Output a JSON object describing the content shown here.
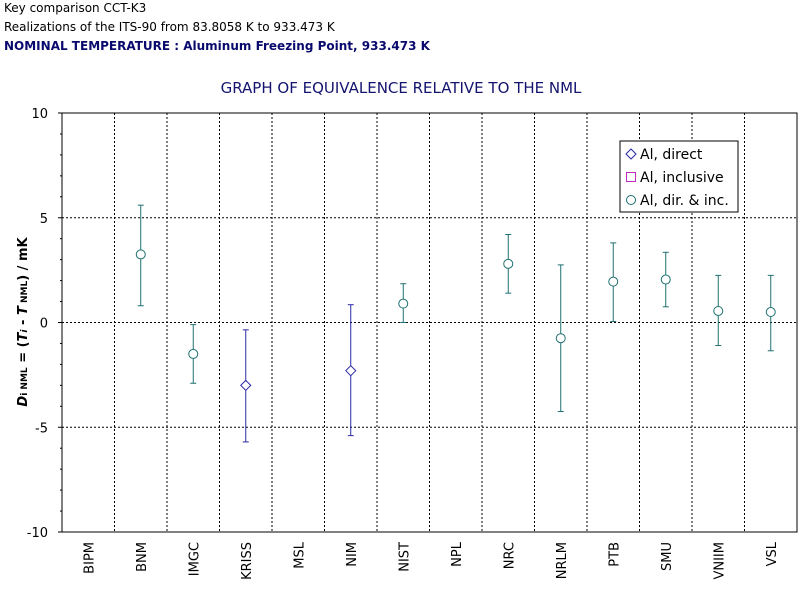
{
  "header": {
    "line1": "Key comparison CCT-K3",
    "line2": "Realizations of the ITS-90 from 83.8058 K to 933.473 K",
    "line3": "NOMINAL TEMPERATURE : Aluminum Freezing Point, 933.473 K"
  },
  "chart_data": {
    "type": "scatter",
    "title": "GRAPH OF EQUIVALENCE RELATIVE TO THE NML",
    "ylabel_parts": [
      "D",
      "i NML",
      " = (",
      "T",
      "i",
      " - ",
      "T",
      " NML",
      ") / mK"
    ],
    "ylim": [
      -10,
      10
    ],
    "yticks": [
      -10,
      -5,
      0,
      5,
      10
    ],
    "categories": [
      "BIPM",
      "BNM",
      "IMGC",
      "KRISS",
      "MSL",
      "NIM",
      "NIST",
      "NPL",
      "NRC",
      "NRLM",
      "PTB",
      "SMU",
      "VNIIM",
      "VSL"
    ],
    "grid": "dashed",
    "legend_position": "top-right",
    "colors": {
      "direct": "#2a2aa8",
      "inclusive": "#c02ac0",
      "combined": "#1f7070"
    },
    "series": [
      {
        "name": "Al, direct",
        "marker": "diamond",
        "color": "#2a2aa8",
        "points": [
          {
            "category": "KRISS",
            "y": -3.0,
            "low": -5.7,
            "high": -0.35
          },
          {
            "category": "NIM",
            "y": -2.3,
            "low": -5.4,
            "high": 0.85
          }
        ]
      },
      {
        "name": "Al, inclusive",
        "marker": "square",
        "color": "#c02ac0",
        "points": []
      },
      {
        "name": "Al, dir. & inc.",
        "marker": "circle",
        "color": "#1f7070",
        "points": [
          {
            "category": "BNM",
            "y": 3.25,
            "low": 0.8,
            "high": 5.6
          },
          {
            "category": "IMGC",
            "y": -1.5,
            "low": -2.9,
            "high": -0.1
          },
          {
            "category": "NIST",
            "y": 0.9,
            "low": 0.0,
            "high": 1.85
          },
          {
            "category": "NRC",
            "y": 2.8,
            "low": 1.4,
            "high": 4.2
          },
          {
            "category": "NRLM",
            "y": -0.75,
            "low": -4.25,
            "high": 2.75
          },
          {
            "category": "PTB",
            "y": 1.95,
            "low": 0.05,
            "high": 3.8
          },
          {
            "category": "SMU",
            "y": 2.05,
            "low": 0.75,
            "high": 3.35
          },
          {
            "category": "VNIIM",
            "y": 0.55,
            "low": -1.1,
            "high": 2.25
          },
          {
            "category": "VSL",
            "y": 0.5,
            "low": -1.35,
            "high": 2.25
          }
        ]
      }
    ]
  }
}
